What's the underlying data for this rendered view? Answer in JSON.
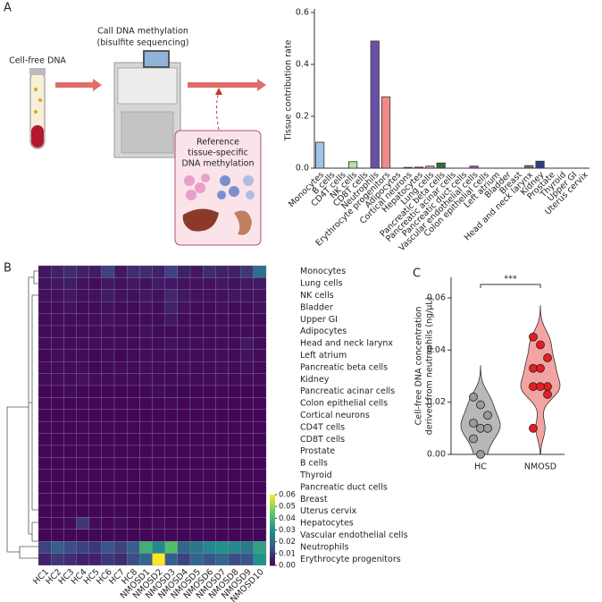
{
  "panels": {
    "a": "A",
    "b": "B",
    "c": "C"
  },
  "illustration": {
    "input": "Cell-free DNA",
    "step": [
      "Call DNA methylation",
      "(bisulfite sequencing)"
    ],
    "reference": [
      "Reference",
      "tissue-specific",
      "DNA methylation"
    ]
  },
  "chart_data": [
    {
      "type": "bar",
      "ylabel": "Tissue contribution rate",
      "categories": [
        "Monocytes",
        "B cells",
        "CD4T cells",
        "NK cells",
        "CD8T cells",
        "Neutrophils",
        "Erythrocyte progenitors",
        "Adipocytes",
        "Cortical neurons",
        "Hepatocytes",
        "Lung cells",
        "Pancreatic beta cells",
        "Pancreatic acinar cells",
        "Pancreatic duct cells",
        "Vascular endothelial cells",
        "Colon epithelial cells",
        "Left atrium",
        "Bladder",
        "Breast",
        "Head and neck larynx",
        "Kidney",
        "Prostate",
        "Thyroid",
        "Upper GI",
        "Uterus cervix"
      ],
      "values": [
        0.1,
        0,
        0,
        0.025,
        0,
        0.49,
        0.275,
        0,
        0.003,
        0.004,
        0.008,
        0.02,
        0,
        0,
        0.008,
        0,
        0,
        0,
        0,
        0.01,
        0.027,
        0,
        0,
        0,
        0
      ],
      "colors": [
        "#9ec3e6",
        "#cccccc",
        "#cccccc",
        "#b5e3a1",
        "#cccccc",
        "#6a4fa8",
        "#f08a8a",
        "#cccccc",
        "#7a6a9a",
        "#8a4a9a",
        "#e090b0",
        "#2f6f3a",
        "#cccccc",
        "#cccccc",
        "#c040c0",
        "#cccccc",
        "#cccccc",
        "#cccccc",
        "#cccccc",
        "#667766",
        "#2a3f80",
        "#cccccc",
        "#cccccc",
        "#cccccc",
        "#cccccc"
      ],
      "ylim": [
        0,
        0.6
      ],
      "yticks": [
        {
          "value": 0,
          "label": "0.0"
        },
        0.2,
        0.4,
        0.6
      ]
    },
    {
      "type": "heatmap",
      "rows": [
        "Monocytes",
        "Lung cells",
        "NK cells",
        "Bladder",
        "Upper GI",
        "Adipocytes",
        "Head and neck larynx",
        "Left atrium",
        "Pancreatic beta cells",
        "Kidney",
        "Pancreatic acinar cells",
        "Colon epithelial cells",
        "Cortical neurons",
        "CD4T cells",
        "CD8T cells",
        "Prostate",
        "B cells",
        "Thyroid",
        "Pancreatic duct cells",
        "Breast",
        "Uterus cervix",
        "Hepatocytes",
        "Vascular endothelial cells",
        "Neutrophils",
        "Erythrocyte progenitors"
      ],
      "columns": [
        "HC1",
        "HC2",
        "HC3",
        "HC4",
        "HC5",
        "HC6",
        "HC7",
        "HC8",
        "NMOSD1",
        "NMOSD2",
        "NMOSD3",
        "NMOSD4",
        "NMOSD5",
        "NMOSD6",
        "NMOSD7",
        "NMOSD8",
        "NMOSD9",
        "NMOSD10"
      ],
      "values": [
        [
          0.004,
          0.006,
          0.008,
          0.006,
          0.005,
          0.012,
          0.004,
          0.008,
          0.008,
          0.006,
          0.012,
          0.006,
          0.004,
          0.008,
          0.006,
          0.006,
          0.01,
          0.022
        ],
        [
          0.003,
          0.004,
          0.005,
          0.003,
          0.002,
          0.004,
          0.003,
          0.004,
          0.003,
          0.005,
          0.004,
          0.003,
          0.003,
          0.003,
          0.004,
          0.003,
          0.004,
          0.005
        ],
        [
          0.003,
          0.003,
          0.004,
          0.003,
          0.003,
          0.005,
          0.003,
          0.003,
          0.004,
          0.003,
          0.007,
          0.004,
          0.003,
          0.003,
          0.003,
          0.004,
          0.003,
          0.003
        ],
        [
          0.002,
          0.002,
          0.003,
          0.002,
          0.002,
          0.003,
          0.002,
          0.002,
          0.003,
          0.002,
          0.006,
          0.003,
          0.002,
          0.002,
          0.003,
          0.002,
          0.002,
          0.003
        ],
        [
          0.002,
          0.002,
          0.002,
          0.002,
          0.002,
          0.003,
          0.002,
          0.002,
          0.002,
          0.002,
          0.004,
          0.002,
          0.002,
          0.002,
          0.002,
          0.002,
          0.002,
          0.002
        ],
        [
          0.002,
          0.002,
          0.002,
          0.002,
          0.002,
          0.002,
          0.002,
          0.002,
          0.003,
          0.002,
          0.002,
          0.002,
          0.002,
          0.002,
          0.002,
          0.002,
          0.002,
          0.002
        ],
        [
          0.002,
          0.002,
          0.002,
          0.002,
          0.002,
          0.002,
          0.002,
          0.002,
          0.002,
          0.002,
          0.003,
          0.002,
          0.002,
          0.002,
          0.002,
          0.002,
          0.004,
          0.002
        ],
        [
          0.001,
          0.002,
          0.002,
          0.002,
          0.001,
          0.002,
          0.001,
          0.002,
          0.002,
          0.002,
          0.002,
          0.002,
          0.002,
          0.002,
          0.002,
          0.002,
          0.003,
          0.002
        ],
        [
          0.002,
          0.002,
          0.002,
          0.002,
          0.001,
          0.002,
          0.002,
          0.002,
          0.002,
          0.002,
          0.002,
          0.002,
          0.002,
          0.002,
          0.002,
          0.002,
          0.002,
          0.002
        ],
        [
          0.002,
          0.002,
          0.002,
          0.003,
          0.002,
          0.002,
          0.002,
          0.002,
          0.002,
          0.002,
          0.002,
          0.002,
          0.002,
          0.002,
          0.002,
          0.002,
          0.002,
          0.002
        ],
        [
          0.001,
          0.001,
          0.002,
          0.001,
          0.001,
          0.001,
          0.001,
          0.001,
          0.001,
          0.002,
          0.001,
          0.001,
          0.001,
          0.001,
          0.001,
          0.001,
          0.001,
          0.001
        ],
        [
          0.001,
          0.001,
          0.001,
          0.001,
          0.001,
          0.001,
          0.001,
          0.001,
          0.001,
          0.001,
          0.002,
          0.001,
          0.001,
          0.001,
          0.001,
          0.001,
          0.001,
          0.001
        ],
        [
          0.001,
          0.001,
          0.001,
          0.001,
          0.001,
          0.001,
          0.001,
          0.001,
          0.001,
          0.001,
          0.001,
          0.001,
          0.001,
          0.001,
          0.001,
          0.001,
          0.001,
          0.001
        ],
        [
          0.001,
          0.001,
          0.001,
          0.001,
          0.001,
          0.001,
          0.001,
          0.001,
          0.001,
          0.001,
          0.001,
          0.001,
          0.001,
          0.001,
          0.001,
          0.001,
          0.001,
          0.001
        ],
        [
          0.001,
          0.001,
          0.001,
          0.001,
          0.001,
          0.001,
          0.001,
          0.001,
          0.001,
          0.001,
          0.001,
          0.001,
          0.001,
          0.001,
          0.001,
          0.001,
          0.001,
          0.001
        ],
        [
          0.001,
          0.001,
          0.001,
          0.001,
          0.001,
          0.001,
          0.001,
          0.001,
          0.001,
          0.001,
          0.001,
          0.001,
          0.001,
          0.001,
          0.001,
          0.001,
          0.001,
          0.001
        ],
        [
          0.001,
          0.001,
          0.001,
          0.001,
          0.001,
          0.001,
          0.001,
          0.001,
          0.001,
          0.001,
          0.001,
          0.001,
          0.001,
          0.001,
          0.001,
          0.001,
          0.001,
          0.001
        ],
        [
          0.001,
          0.001,
          0.001,
          0.001,
          0.001,
          0.001,
          0.001,
          0.001,
          0.001,
          0.001,
          0.001,
          0.001,
          0.001,
          0.001,
          0.001,
          0.001,
          0.001,
          0.001
        ],
        [
          0.001,
          0.001,
          0.001,
          0.001,
          0.001,
          0.001,
          0.001,
          0.001,
          0.001,
          0.001,
          0.001,
          0.001,
          0.001,
          0.001,
          0.001,
          0.001,
          0.001,
          0.001
        ],
        [
          0.001,
          0.001,
          0.001,
          0.001,
          0.001,
          0.001,
          0.001,
          0.001,
          0.001,
          0.001,
          0.001,
          0.001,
          0.001,
          0.001,
          0.001,
          0.001,
          0.001,
          0.001
        ],
        [
          0.001,
          0.001,
          0.001,
          0.001,
          0.001,
          0.001,
          0.001,
          0.001,
          0.001,
          0.001,
          0.001,
          0.001,
          0.001,
          0.001,
          0.001,
          0.001,
          0.001,
          0.001
        ],
        [
          0.001,
          0.001,
          0.002,
          0.01,
          0.002,
          0.001,
          0.002,
          0.001,
          0.001,
          0.002,
          0.001,
          0.001,
          0.001,
          0.001,
          0.001,
          0.001,
          0.001,
          0.001
        ],
        [
          0.001,
          0.001,
          0.001,
          0.001,
          0.001,
          0.001,
          0.001,
          0.001,
          0.001,
          0.001,
          0.001,
          0.001,
          0.001,
          0.001,
          0.001,
          0.001,
          0.001,
          0.001
        ],
        [
          0.012,
          0.018,
          0.014,
          0.012,
          0.01,
          0.016,
          0.012,
          0.018,
          0.038,
          0.028,
          0.042,
          0.02,
          0.024,
          0.028,
          0.03,
          0.028,
          0.024,
          0.034
        ],
        [
          0.006,
          0.01,
          0.008,
          0.006,
          0.006,
          0.01,
          0.008,
          0.014,
          0.02,
          0.06,
          0.018,
          0.012,
          0.02,
          0.016,
          0.02,
          0.014,
          0.016,
          0.03
        ]
      ],
      "colormap": "viridis",
      "colorbar": {
        "lim": [
          0,
          0.06
        ],
        "ticks": [
          {
            "value": 0,
            "label": "0.00"
          },
          0.01,
          0.02,
          0.03,
          0.04,
          0.05,
          0.06
        ]
      }
    },
    {
      "type": "violin",
      "categories": [
        "HC",
        "NMOSD"
      ],
      "ylabel": [
        "Cell-free DNA concentration",
        "derived from neutrophils (ng/μL)"
      ],
      "groups": [
        {
          "color": "#9a9a9a",
          "fill": "#b8b8b8",
          "values": [
            0.022,
            0.019,
            0.015,
            0.012,
            0.01,
            0.01,
            0.006,
            0.0
          ]
        },
        {
          "color": "#e81e1e",
          "fill": "#f4a3a3",
          "values": [
            0.045,
            0.042,
            0.037,
            0.033,
            0.033,
            0.026,
            0.026,
            0.026,
            0.023,
            0.01
          ]
        }
      ],
      "annotation": "***",
      "ylim": [
        0,
        0.06
      ],
      "yticks": [
        {
          "value": 0,
          "label": "0.00"
        },
        0.02,
        0.04,
        0.06
      ]
    }
  ]
}
